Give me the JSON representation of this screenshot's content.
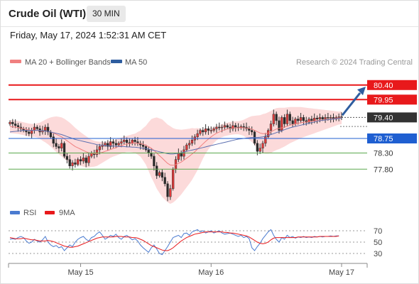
{
  "header": {
    "title": "Crude Oil (WTI)",
    "timeframe": "30 MIN",
    "datetime": "Friday, May 17, 2024 1:52:31 AM CET"
  },
  "credit": "Research © 2024 Trading Central",
  "colors": {
    "resistance": "#e8191b",
    "support_blue": "#1f5fd1",
    "support_green": "#5aa84d",
    "ma20": "#f08080",
    "ma50": "#5b6fb0",
    "bollinger": "#fcd3d3",
    "candle_up": "#e23a3a",
    "candle_down": "#2a2a2a",
    "rsi": "#4a7bd0",
    "rsi_ma": "#e8191b",
    "arrow": "#2e5d9f",
    "last_price_bg": "#333333"
  },
  "chart_data": [
    {
      "type": "candlestick",
      "legend": [
        {
          "name": "MA 20 + Bollinger Bands",
          "color": "#f08080"
        },
        {
          "name": "MA 50",
          "color": "#2e5d9f"
        }
      ],
      "ylim": [
        76.6,
        80.9
      ],
      "levels": [
        {
          "label": "80.40",
          "value": 80.4,
          "kind": "resistance"
        },
        {
          "label": "79.95",
          "value": 79.95,
          "kind": "resistance"
        },
        {
          "label": "78.75",
          "value": 78.75,
          "kind": "support-blue"
        },
        {
          "label": "78.30",
          "value": 78.3,
          "kind": "support-green"
        },
        {
          "label": "77.80",
          "value": 77.8,
          "kind": "support-green"
        }
      ],
      "last_price": {
        "label": "79.40",
        "value": 79.4
      },
      "x_ticks": [
        {
          "label": "May 15",
          "index": 26
        },
        {
          "label": "May 16",
          "index": 74
        },
        {
          "label": "May 17",
          "index": 122
        }
      ],
      "close": [
        79.25,
        79.2,
        79.15,
        79.1,
        79.05,
        79.0,
        78.95,
        78.9,
        79.0,
        79.1,
        79.05,
        78.95,
        79.0,
        79.1,
        78.95,
        78.8,
        78.6,
        78.5,
        78.45,
        78.6,
        78.2,
        78.1,
        77.9,
        78.0,
        77.95,
        78.1,
        78.05,
        78.15,
        78.0,
        78.2,
        78.3,
        78.25,
        78.4,
        78.5,
        78.55,
        78.6,
        78.5,
        78.65,
        78.6,
        78.55,
        78.6,
        78.65,
        78.7,
        78.62,
        78.6,
        78.7,
        78.65,
        78.6,
        78.55,
        78.5,
        78.4,
        78.3,
        78.2,
        77.9,
        77.6,
        77.7,
        77.55,
        77.35,
        76.95,
        77.2,
        77.8,
        78.1,
        78.3,
        78.2,
        78.4,
        78.55,
        78.6,
        78.7,
        78.8,
        78.9,
        79.0,
        78.95,
        79.05,
        79.0,
        79.0,
        79.05,
        79.1,
        79.08,
        79.1,
        79.15,
        79.1,
        79.05,
        79.15,
        79.1,
        79.08,
        79.12,
        79.1,
        79.05,
        79.0,
        78.95,
        78.6,
        78.35,
        78.45,
        78.6,
        78.8,
        79.0,
        79.2,
        79.5,
        79.3,
        79.0,
        79.4,
        79.2,
        79.5,
        79.3,
        79.2,
        79.35,
        79.3,
        79.4,
        79.3,
        79.25,
        79.35,
        79.3,
        79.38,
        79.35,
        79.4,
        79.35,
        79.4,
        79.38,
        79.4,
        79.35,
        79.4,
        79.42,
        79.4
      ],
      "ma20": [
        79.12,
        79.11,
        79.1,
        79.09,
        79.07,
        79.05,
        79.03,
        79.01,
        79.0,
        79.0,
        79.0,
        78.99,
        78.98,
        78.98,
        78.97,
        78.95,
        78.92,
        78.88,
        78.84,
        78.8,
        78.74,
        78.68,
        78.62,
        78.56,
        78.5,
        78.46,
        78.42,
        78.38,
        78.34,
        78.31,
        78.29,
        78.28,
        78.28,
        78.3,
        78.32,
        78.35,
        78.38,
        78.41,
        78.44,
        78.47,
        78.5,
        78.53,
        78.56,
        78.58,
        78.59,
        78.6,
        78.6,
        78.6,
        78.59,
        78.57,
        78.54,
        78.5,
        78.45,
        78.38,
        78.3,
        78.22,
        78.14,
        78.06,
        77.98,
        77.93,
        77.92,
        77.94,
        77.98,
        78.02,
        78.08,
        78.14,
        78.2,
        78.27,
        78.34,
        78.42,
        78.5,
        78.58,
        78.66,
        78.73,
        78.8,
        78.86,
        78.91,
        78.95,
        78.99,
        79.02,
        79.04,
        79.06,
        79.07,
        79.08,
        79.08,
        79.08,
        79.08,
        79.07,
        79.06,
        79.04,
        79.0,
        78.96,
        78.92,
        78.9,
        78.9,
        78.92,
        78.95,
        79.0,
        79.04,
        79.06,
        79.08,
        79.1,
        79.13,
        79.16,
        79.18,
        79.2,
        79.22,
        79.24,
        79.25,
        79.26,
        79.27,
        79.28,
        79.29,
        79.3,
        79.31,
        79.32,
        79.33,
        79.34,
        79.35,
        79.36,
        79.37,
        79.38,
        79.39
      ],
      "ma50": [
        78.95,
        78.96,
        78.97,
        78.98,
        78.99,
        79.0,
        79.0,
        79.0,
        79.0,
        79.0,
        79.0,
        79.0,
        78.99,
        78.98,
        78.97,
        78.95,
        78.93,
        78.91,
        78.89,
        78.87,
        78.84,
        78.81,
        78.78,
        78.75,
        78.72,
        78.7,
        78.68,
        78.66,
        78.64,
        78.62,
        78.6,
        78.58,
        78.56,
        78.55,
        78.54,
        78.53,
        78.52,
        78.52,
        78.51,
        78.51,
        78.5,
        78.5,
        78.5,
        78.49,
        78.49,
        78.48,
        78.48,
        78.47,
        78.46,
        78.45,
        78.44,
        78.42,
        78.4,
        78.38,
        78.36,
        78.34,
        78.32,
        78.3,
        78.28,
        78.27,
        78.27,
        78.28,
        78.29,
        78.31,
        78.33,
        78.35,
        78.37,
        78.39,
        78.41,
        78.43,
        78.45,
        78.47,
        78.49,
        78.51,
        78.53,
        78.55,
        78.57,
        78.59,
        78.61,
        78.63,
        78.65,
        78.67,
        78.69,
        78.71,
        78.73,
        78.74,
        78.75,
        78.76,
        78.77,
        78.78,
        78.78,
        78.78,
        78.79,
        78.8,
        78.82,
        78.84,
        78.87,
        78.9,
        78.93,
        78.96,
        78.99,
        79.02,
        79.05,
        79.08,
        79.1,
        79.12,
        79.14,
        79.16,
        79.18,
        79.2,
        79.22,
        79.24,
        79.26,
        79.28,
        79.3,
        79.31,
        79.32,
        79.33,
        79.34,
        79.35,
        79.36,
        79.37,
        79.38
      ],
      "bb_width": [
        0.2,
        0.2,
        0.2,
        0.2,
        0.2,
        0.2,
        0.2,
        0.2,
        0.2,
        0.2,
        0.22,
        0.25,
        0.3,
        0.35,
        0.4,
        0.45,
        0.5,
        0.55,
        0.58,
        0.6,
        0.62,
        0.62,
        0.62,
        0.6,
        0.58,
        0.55,
        0.52,
        0.5,
        0.48,
        0.45,
        0.42,
        0.4,
        0.38,
        0.35,
        0.32,
        0.3,
        0.28,
        0.26,
        0.25,
        0.25,
        0.25,
        0.25,
        0.25,
        0.25,
        0.26,
        0.28,
        0.3,
        0.35,
        0.4,
        0.5,
        0.6,
        0.75,
        0.9,
        1.0,
        1.1,
        1.15,
        1.2,
        1.2,
        1.2,
        1.2,
        1.15,
        1.1,
        1.05,
        1.0,
        0.95,
        0.9,
        0.85,
        0.8,
        0.72,
        0.65,
        0.55,
        0.45,
        0.38,
        0.32,
        0.28,
        0.25,
        0.22,
        0.2,
        0.2,
        0.2,
        0.2,
        0.2,
        0.2,
        0.2,
        0.2,
        0.22,
        0.25,
        0.3,
        0.35,
        0.4,
        0.45,
        0.5,
        0.55,
        0.6,
        0.62,
        0.64,
        0.65,
        0.65,
        0.65,
        0.64,
        0.62,
        0.6,
        0.58,
        0.56,
        0.54,
        0.52,
        0.5,
        0.48,
        0.46,
        0.44,
        0.42,
        0.4,
        0.38,
        0.36,
        0.34,
        0.32,
        0.3,
        0.28,
        0.26,
        0.24,
        0.22,
        0.2,
        0.2
      ]
    },
    {
      "type": "line",
      "legend": [
        {
          "name": "RSI",
          "color": "#4a7bd0"
        },
        {
          "name": "9MA",
          "color": "#e8191b"
        }
      ],
      "ylim": [
        20,
        80
      ],
      "y_ticks": [
        {
          "label": "70",
          "value": 70
        },
        {
          "label": "50",
          "value": 50
        },
        {
          "label": "30",
          "value": 30
        }
      ],
      "rsi": [
        55,
        56,
        55,
        58,
        60,
        58,
        52,
        48,
        50,
        55,
        52,
        50,
        54,
        60,
        50,
        45,
        42,
        44,
        40,
        42,
        35,
        40,
        45,
        42,
        50,
        55,
        58,
        60,
        55,
        52,
        58,
        60,
        65,
        68,
        62,
        55,
        58,
        62,
        60,
        64,
        58,
        55,
        60,
        62,
        58,
        54,
        56,
        52,
        45,
        40,
        36,
        32,
        40,
        45,
        38,
        30,
        28,
        35,
        42,
        50,
        58,
        60,
        62,
        58,
        65,
        66,
        62,
        68,
        70,
        72,
        68,
        70,
        66,
        68,
        70,
        66,
        68,
        70,
        66,
        64,
        65,
        66,
        64,
        62,
        60,
        62,
        58,
        60,
        56,
        40,
        35,
        42,
        48,
        56,
        62,
        68,
        72,
        62,
        55,
        50,
        58,
        55,
        62,
        58,
        60,
        57,
        59,
        58,
        60,
        58,
        59,
        58,
        60,
        59,
        60,
        59,
        60,
        60,
        61,
        60,
        61,
        61
      ],
      "ma9": [
        58,
        57,
        56,
        56,
        56,
        57,
        56,
        55,
        54,
        54,
        53,
        52,
        52,
        52,
        53,
        52,
        51,
        49,
        47,
        45,
        43,
        42,
        41,
        41,
        42,
        43,
        45,
        47,
        49,
        51,
        53,
        55,
        57,
        58,
        59,
        59,
        59,
        59,
        59,
        60,
        60,
        60,
        59,
        59,
        59,
        58,
        58,
        57,
        55,
        53,
        50,
        47,
        44,
        42,
        40,
        38,
        36,
        35,
        35,
        37,
        40,
        44,
        48,
        52,
        55,
        58,
        60,
        62,
        64,
        65,
        66,
        67,
        68,
        68,
        68,
        68,
        68,
        68,
        68,
        67,
        67,
        66,
        66,
        65,
        64,
        63,
        62,
        61,
        59,
        56,
        53,
        50,
        48,
        47,
        48,
        50,
        54,
        57,
        58,
        58,
        58,
        58,
        58,
        58,
        58,
        58,
        59,
        59,
        59,
        59,
        59,
        59,
        59,
        59,
        60,
        60,
        60,
        60,
        60,
        60,
        60,
        61
      ]
    }
  ]
}
